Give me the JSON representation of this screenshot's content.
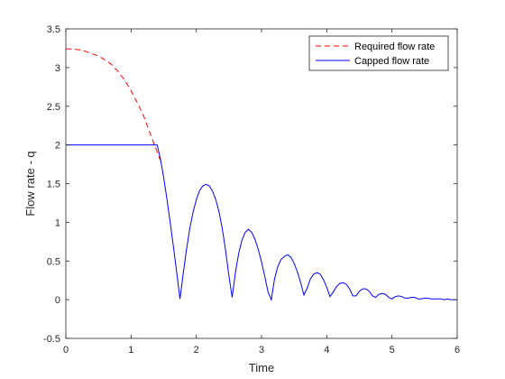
{
  "chart_data": {
    "type": "line",
    "title": "",
    "xlabel": "Time",
    "ylabel": "Flow rate - q",
    "xlim": [
      0,
      6
    ],
    "ylim": [
      -0.5,
      3.5
    ],
    "xticks": [
      0,
      1,
      2,
      3,
      4,
      5,
      6
    ],
    "yticks": [
      -0.5,
      0,
      0.5,
      1,
      1.5,
      2,
      2.5,
      3,
      3.5
    ],
    "xtick_labels": [
      "0",
      "1",
      "2",
      "3",
      "4",
      "5",
      "6"
    ],
    "ytick_labels": [
      "-0.5",
      "0",
      "0.5",
      "1",
      "1.5",
      "2",
      "2.5",
      "3",
      "3.5"
    ],
    "grid": false,
    "legend_position": "top-right",
    "series": [
      {
        "name": "Required flow rate",
        "color": "#ff0000",
        "style": "dashed",
        "x": [
          0,
          0.1,
          0.2,
          0.3,
          0.4,
          0.5,
          0.6,
          0.7,
          0.8,
          0.9,
          1.0,
          1.1,
          1.2,
          1.3,
          1.35,
          1.4,
          1.45
        ],
        "y": [
          3.24,
          3.24,
          3.23,
          3.21,
          3.18,
          3.15,
          3.1,
          3.04,
          2.95,
          2.84,
          2.7,
          2.54,
          2.36,
          2.13,
          2.02,
          1.91,
          1.8
        ]
      },
      {
        "name": "Capped flow rate",
        "color": "#0000ff",
        "style": "solid",
        "x": [
          0,
          1.4,
          1.45,
          1.5,
          1.55,
          1.6,
          1.65,
          1.7,
          1.75,
          1.8,
          1.85,
          1.9,
          1.95,
          2.0,
          2.05,
          2.1,
          2.15,
          2.2,
          2.25,
          2.3,
          2.35,
          2.4,
          2.45,
          2.5,
          2.55,
          2.6,
          2.65,
          2.7,
          2.75,
          2.8,
          2.85,
          2.9,
          2.95,
          3.0,
          3.05,
          3.1,
          3.15,
          3.2,
          3.25,
          3.3,
          3.35,
          3.4,
          3.45,
          3.5,
          3.55,
          3.6,
          3.65,
          3.7,
          3.75,
          3.8,
          3.85,
          3.9,
          3.95,
          4.0,
          4.05,
          4.1,
          4.15,
          4.2,
          4.25,
          4.3,
          4.35,
          4.4,
          4.45,
          4.5,
          4.55,
          4.6,
          4.65,
          4.7,
          4.75,
          4.8,
          4.85,
          4.9,
          4.95,
          5.0,
          5.05,
          5.1,
          5.15,
          5.2,
          5.25,
          5.3,
          5.35,
          5.4,
          5.45,
          5.5,
          5.55,
          5.6,
          5.65,
          5.7,
          5.75,
          5.8,
          5.85,
          5.9,
          5.95,
          6.0
        ],
        "y": [
          2.0,
          2.0,
          1.82,
          1.58,
          1.3,
          1.0,
          0.68,
          0.35,
          0.01,
          0.34,
          0.65,
          0.92,
          1.13,
          1.29,
          1.41,
          1.47,
          1.49,
          1.47,
          1.4,
          1.29,
          1.13,
          0.91,
          0.63,
          0.31,
          0.03,
          0.35,
          0.6,
          0.77,
          0.87,
          0.91,
          0.87,
          0.78,
          0.65,
          0.49,
          0.3,
          0.1,
          0.0,
          0.27,
          0.43,
          0.52,
          0.56,
          0.58,
          0.55,
          0.47,
          0.36,
          0.22,
          0.06,
          0.15,
          0.27,
          0.33,
          0.35,
          0.33,
          0.26,
          0.16,
          0.04,
          0.1,
          0.17,
          0.21,
          0.22,
          0.2,
          0.14,
          0.05,
          0.05,
          0.11,
          0.14,
          0.14,
          0.11,
          0.05,
          0.03,
          0.07,
          0.08,
          0.07,
          0.03,
          0.01,
          0.04,
          0.05,
          0.04,
          0.02,
          0.02,
          0.03,
          0.03,
          0.01,
          0.01,
          0.02,
          0.02,
          0.01,
          0.01,
          0.01,
          0.01,
          0.0,
          0.01,
          0.0,
          0.0,
          0.0
        ]
      }
    ]
  }
}
